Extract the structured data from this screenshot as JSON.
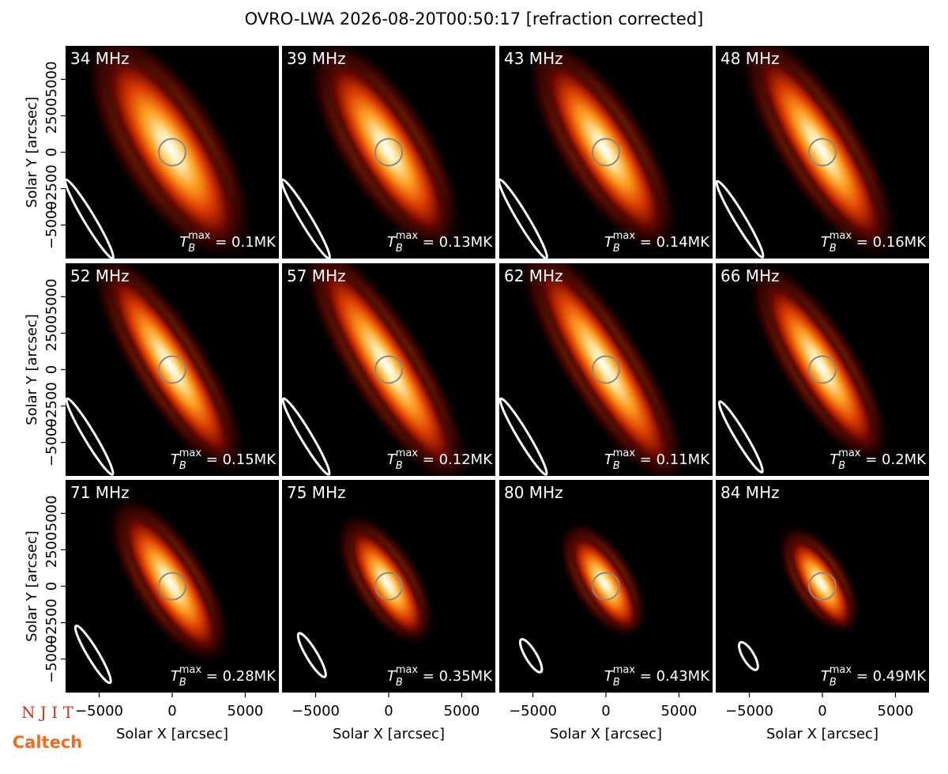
{
  "title": "OVRO-LWA 2026-08-20T00:50:17 [refraction corrected]",
  "logo": {
    "top": "N J I T",
    "bottom": "Caltech"
  },
  "chart_data": [
    {
      "type": "image",
      "annotation": "34 MHz",
      "tb_symbol": "T",
      "tb_sub": "B",
      "tb_sup": "max",
      "tb_text": " = 0.1MK",
      "xlim": [
        -7300,
        7300
      ],
      "ylim": [
        -7300,
        7300
      ],
      "ylabel": "Solar Y [arcsec]",
      "yticks": [
        {
          "value": -5000,
          "label": "−5000"
        },
        {
          "value": -2500,
          "label": "−2500"
        },
        0,
        2500,
        5000
      ]
    },
    {
      "type": "image",
      "annotation": "39 MHz",
      "tb_symbol": "T",
      "tb_sub": "B",
      "tb_sup": "max",
      "tb_text": " = 0.13MK",
      "xlim": [
        -7300,
        7300
      ],
      "ylim": [
        -7300,
        7300
      ]
    },
    {
      "type": "image",
      "annotation": "43 MHz",
      "tb_symbol": "T",
      "tb_sub": "B",
      "tb_sup": "max",
      "tb_text": " = 0.14MK",
      "xlim": [
        -7300,
        7300
      ],
      "ylim": [
        -7300,
        7300
      ]
    },
    {
      "type": "image",
      "annotation": "48 MHz",
      "tb_symbol": "T",
      "tb_sub": "B",
      "tb_sup": "max",
      "tb_text": " = 0.16MK",
      "xlim": [
        -7300,
        7300
      ],
      "ylim": [
        -7300,
        7300
      ]
    },
    {
      "type": "image",
      "annotation": "52 MHz",
      "tb_symbol": "T",
      "tb_sub": "B",
      "tb_sup": "max",
      "tb_text": " = 0.15MK",
      "xlim": [
        -7300,
        7300
      ],
      "ylim": [
        -7300,
        7300
      ],
      "ylabel": "Solar Y [arcsec]",
      "yticks": [
        {
          "value": -5000,
          "label": "−5000"
        },
        {
          "value": -2500,
          "label": "−2500"
        },
        0,
        2500,
        5000
      ]
    },
    {
      "type": "image",
      "annotation": "57 MHz",
      "tb_symbol": "T",
      "tb_sub": "B",
      "tb_sup": "max",
      "tb_text": " = 0.12MK",
      "xlim": [
        -7300,
        7300
      ],
      "ylim": [
        -7300,
        7300
      ]
    },
    {
      "type": "image",
      "annotation": "62 MHz",
      "tb_symbol": "T",
      "tb_sub": "B",
      "tb_sup": "max",
      "tb_text": " = 0.11MK",
      "xlim": [
        -7300,
        7300
      ],
      "ylim": [
        -7300,
        7300
      ]
    },
    {
      "type": "image",
      "annotation": "66 MHz",
      "tb_symbol": "T",
      "tb_sub": "B",
      "tb_sup": "max",
      "tb_text": " = 0.2MK",
      "xlim": [
        -7300,
        7300
      ],
      "ylim": [
        -7300,
        7300
      ]
    },
    {
      "type": "image",
      "annotation": "71 MHz",
      "tb_symbol": "T",
      "tb_sub": "B",
      "tb_sup": "max",
      "tb_text": " = 0.28MK",
      "xlim": [
        -7300,
        7300
      ],
      "ylim": [
        -7300,
        7300
      ],
      "ylabel": "Solar Y [arcsec]",
      "yticks": [
        {
          "value": -5000,
          "label": "−5000"
        },
        {
          "value": -2500,
          "label": "−2500"
        },
        0,
        2500,
        5000
      ],
      "xlabel": "Solar X [arcsec]",
      "xticks": [
        {
          "value": -5000,
          "label": "−5000"
        },
        0,
        5000
      ]
    },
    {
      "type": "image",
      "annotation": "75 MHz",
      "tb_symbol": "T",
      "tb_sub": "B",
      "tb_sup": "max",
      "tb_text": " = 0.35MK",
      "xlim": [
        -7300,
        7300
      ],
      "ylim": [
        -7300,
        7300
      ],
      "xlabel": "Solar X [arcsec]",
      "xticks": [
        {
          "value": -5000,
          "label": "−5000"
        },
        0,
        5000
      ]
    },
    {
      "type": "image",
      "annotation": "80 MHz",
      "tb_symbol": "T",
      "tb_sub": "B",
      "tb_sup": "max",
      "tb_text": " = 0.43MK",
      "xlim": [
        -7300,
        7300
      ],
      "ylim": [
        -7300,
        7300
      ],
      "xlabel": "Solar X [arcsec]",
      "xticks": [
        {
          "value": -5000,
          "label": "−5000"
        },
        0,
        5000
      ]
    },
    {
      "type": "image",
      "annotation": "84 MHz",
      "tb_symbol": "T",
      "tb_sub": "B",
      "tb_sup": "max",
      "tb_text": " = 0.49MK",
      "xlim": [
        -7300,
        7300
      ],
      "ylim": [
        -7300,
        7300
      ],
      "xlabel": "Solar X [arcsec]",
      "xticks": [
        {
          "value": -5000,
          "label": "−5000"
        },
        0,
        5000
      ]
    }
  ]
}
